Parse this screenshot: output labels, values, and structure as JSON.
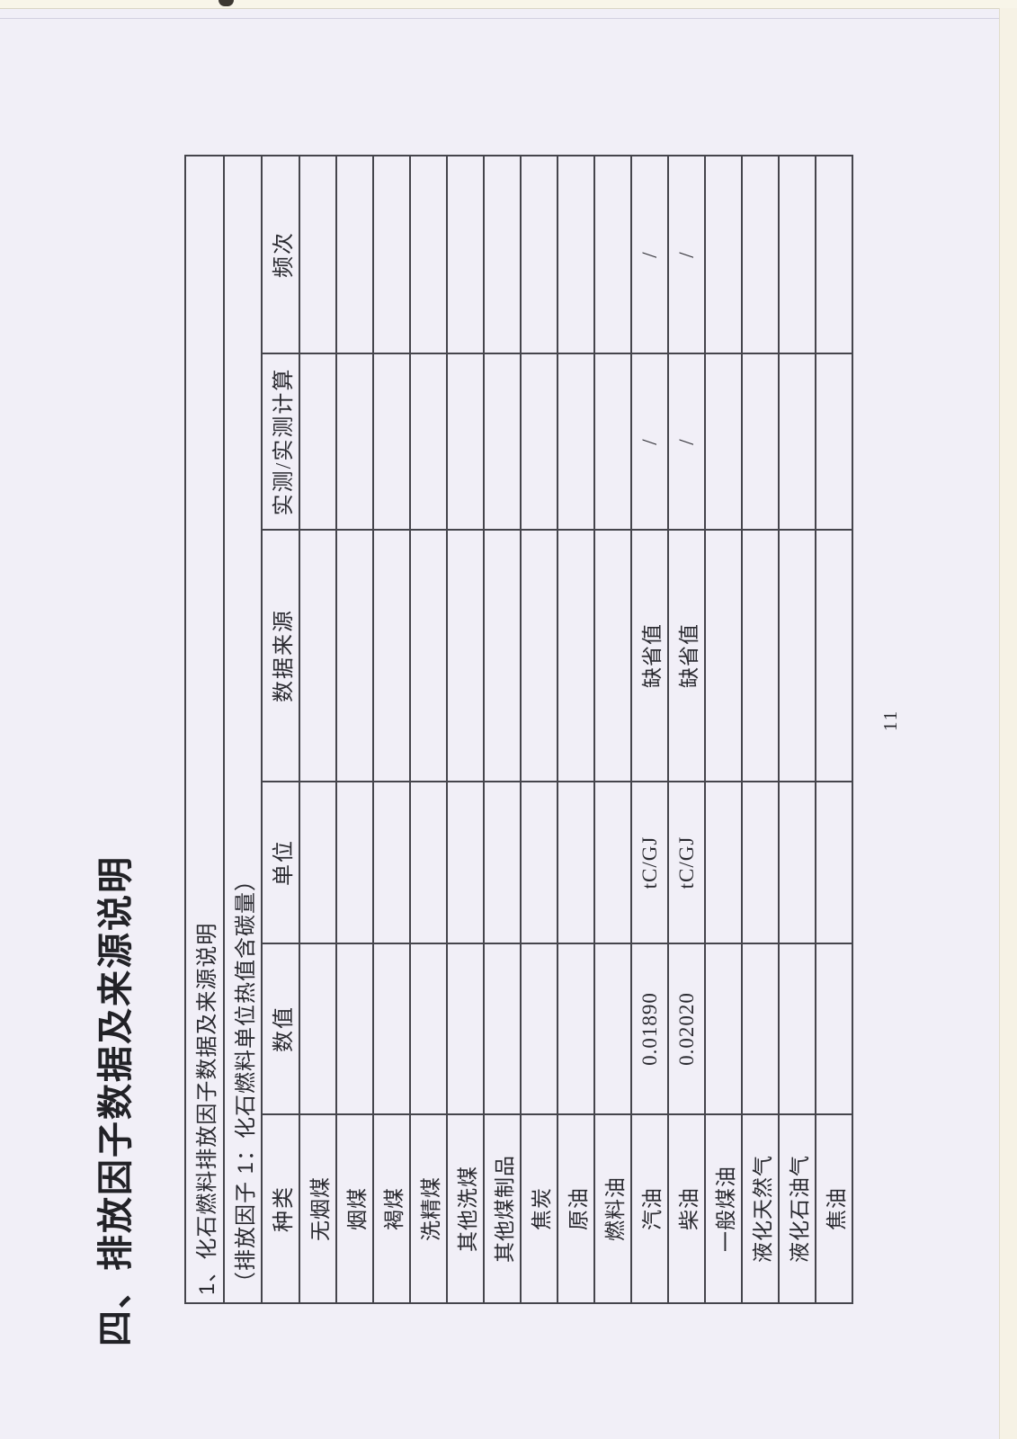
{
  "page": {
    "section_title": "四、排放因子数据及来源说明",
    "page_number": "11"
  },
  "table": {
    "title": "1、化石燃料排放因子数据及来源说明",
    "subtitle": "（排放因子 1：化石燃料单位热值含碳量）",
    "columns": [
      "种类",
      "数值",
      "单位",
      "数据来源",
      "实测/实测计算",
      "频次"
    ],
    "row_keys": [
      "type",
      "value",
      "unit",
      "source",
      "measured",
      "frequency"
    ],
    "rows": [
      {
        "type": "无烟煤",
        "value": "",
        "unit": "",
        "source": "",
        "measured": "",
        "frequency": ""
      },
      {
        "type": "烟煤",
        "value": "",
        "unit": "",
        "source": "",
        "measured": "",
        "frequency": ""
      },
      {
        "type": "褐煤",
        "value": "",
        "unit": "",
        "source": "",
        "measured": "",
        "frequency": ""
      },
      {
        "type": "洗精煤",
        "value": "",
        "unit": "",
        "source": "",
        "measured": "",
        "frequency": ""
      },
      {
        "type": "其他洗煤",
        "value": "",
        "unit": "",
        "source": "",
        "measured": "",
        "frequency": ""
      },
      {
        "type": "其他煤制品",
        "value": "",
        "unit": "",
        "source": "",
        "measured": "",
        "frequency": ""
      },
      {
        "type": "焦炭",
        "value": "",
        "unit": "",
        "source": "",
        "measured": "",
        "frequency": ""
      },
      {
        "type": "原油",
        "value": "",
        "unit": "",
        "source": "",
        "measured": "",
        "frequency": ""
      },
      {
        "type": "燃料油",
        "value": "",
        "unit": "",
        "source": "",
        "measured": "",
        "frequency": ""
      },
      {
        "type": "汽油",
        "value": "0.01890",
        "unit": "tC/GJ",
        "source": "缺省值",
        "measured": "/",
        "frequency": "/"
      },
      {
        "type": "柴油",
        "value": "0.02020",
        "unit": "tC/GJ",
        "source": "缺省值",
        "measured": "/",
        "frequency": "/"
      },
      {
        "type": "一般煤油",
        "value": "",
        "unit": "",
        "source": "",
        "measured": "",
        "frequency": ""
      },
      {
        "type": "液化天然气",
        "value": "",
        "unit": "",
        "source": "",
        "measured": "",
        "frequency": ""
      },
      {
        "type": "液化石油气",
        "value": "",
        "unit": "",
        "source": "",
        "measured": "",
        "frequency": ""
      },
      {
        "type": "焦油",
        "value": "",
        "unit": "",
        "source": "",
        "measured": "",
        "frequency": ""
      }
    ]
  },
  "colors": {
    "paper": "#f1eff7",
    "ink": "#2a2a30",
    "grid_line": "#45454c",
    "scan_edge": "#f8f5e9"
  }
}
